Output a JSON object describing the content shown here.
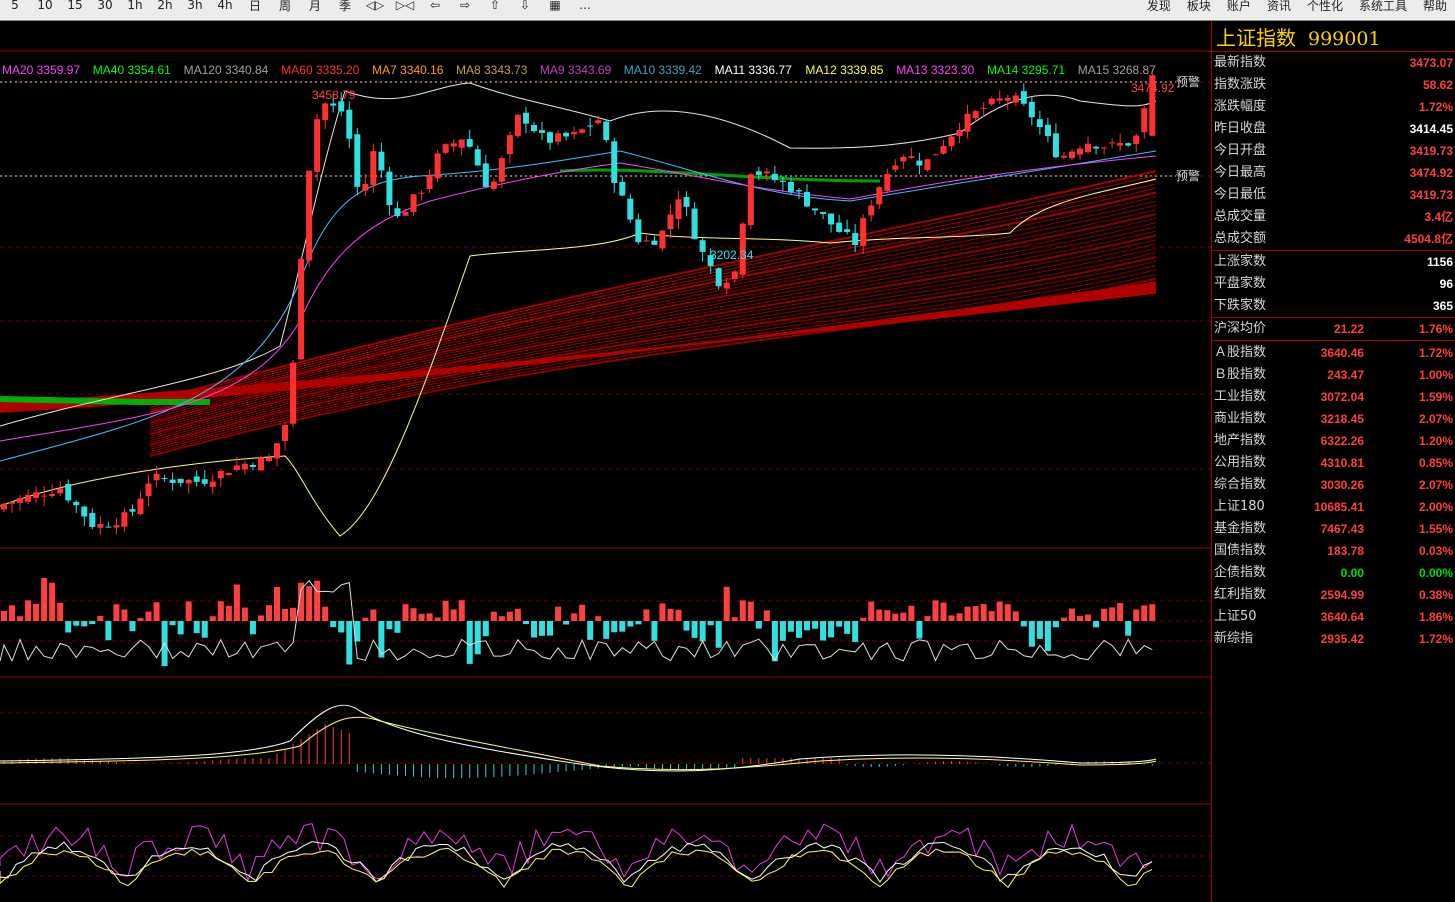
{
  "toolbar": {
    "left_items": [
      "5",
      "10",
      "15",
      "30",
      "1h",
      "2h",
      "3h",
      "4h",
      "日",
      "周",
      "月",
      "季",
      "◁▷",
      "▷◁",
      "⇦",
      "⇨",
      "⇧",
      "⇩",
      "▦",
      "..."
    ],
    "right_items": [
      "发现",
      "板块",
      "账户",
      "资讯",
      "个性化",
      "系统工具",
      "帮助"
    ]
  },
  "ma_legend": [
    {
      "label": "MA20 3359.97",
      "color": "#ff40ff"
    },
    {
      "label": "MA40 3354.61",
      "color": "#00ff00"
    },
    {
      "label": "MA120 3340.84",
      "color": "#a0a0a0"
    },
    {
      "label": "MA60 3335.20",
      "color": "#ff3030"
    },
    {
      "label": "MA7 3340.16",
      "color": "#ffa000"
    },
    {
      "label": "MA8 3343.73",
      "color": "#c0a040"
    },
    {
      "label": "MA9 3343.69",
      "color": "#c040c0"
    },
    {
      "label": "MA10 3339.42",
      "color": "#40a0c0"
    },
    {
      "label": "MA11 3336.77",
      "color": "#ffffff"
    },
    {
      "label": "MA12 3339.85",
      "color": "#ffff40"
    },
    {
      "label": "MA13 3323.30",
      "color": "#ff40ff"
    },
    {
      "label": "MA14 3295.71",
      "color": "#00ff00"
    },
    {
      "label": "MA15 3268.87",
      "color": "#a0a0a0"
    }
  ],
  "annotations": {
    "high_label": "3458.79",
    "low_label": "3202.34",
    "last_label": "3474.92",
    "alert_label": "预警"
  },
  "colors": {
    "up": "#ff4040",
    "down": "#40e0e0",
    "grid": "#8b0000"
  },
  "chart_data": {
    "type": "candlestick",
    "y_range": [
      3060,
      3490
    ],
    "candles": [],
    "volume": [],
    "macd": []
  },
  "sidebar": {
    "title": "上证指数",
    "code": "999001",
    "quote_rows": [
      {
        "label": "最新指数",
        "value": "3473.07",
        "color": "red"
      },
      {
        "label": "指数涨跌",
        "value": "58.62",
        "color": "red"
      },
      {
        "label": "涨跌幅度",
        "value": "1.72%",
        "color": "red"
      },
      {
        "label": "昨日收盘",
        "value": "3414.45",
        "color": "white"
      },
      {
        "label": "今日开盘",
        "value": "3419.73",
        "color": "red"
      },
      {
        "label": "今日最高",
        "value": "3474.92",
        "color": "red"
      },
      {
        "label": "今日最低",
        "value": "3419.73",
        "color": "red"
      },
      {
        "label": "总成交量",
        "value": "3.4亿",
        "color": "red"
      },
      {
        "label": "总成交额",
        "value": "4504.8亿",
        "color": "red"
      }
    ],
    "breadth_rows": [
      {
        "label": "上涨家数",
        "value": "1156",
        "color": "white"
      },
      {
        "label": "平盘家数",
        "value": "96",
        "color": "white"
      },
      {
        "label": "下跌家数",
        "value": "365",
        "color": "white"
      }
    ],
    "avg_row": {
      "label": "沪深均价",
      "value1": "21.22",
      "value2": "1.76%"
    },
    "index_rows": [
      {
        "label": "Ａ股指数",
        "value1": "3640.46",
        "value2": "1.72%",
        "color": "red"
      },
      {
        "label": "Ｂ股指数",
        "value1": "243.47",
        "value2": "1.00%",
        "color": "red"
      },
      {
        "label": "工业指数",
        "value1": "3072.04",
        "value2": "1.59%",
        "color": "red"
      },
      {
        "label": "商业指数",
        "value1": "3218.45",
        "value2": "2.07%",
        "color": "red"
      },
      {
        "label": "地产指数",
        "value1": "6322.26",
        "value2": "1.20%",
        "color": "red"
      },
      {
        "label": "公用指数",
        "value1": "4310.81",
        "value2": "0.85%",
        "color": "red"
      },
      {
        "label": "综合指数",
        "value1": "3030.26",
        "value2": "2.07%",
        "color": "red"
      },
      {
        "label": "上证180",
        "value1": "10685.41",
        "value2": "2.00%",
        "color": "red"
      },
      {
        "label": "基金指数",
        "value1": "7467.43",
        "value2": "1.55%",
        "color": "red"
      },
      {
        "label": "国债指数",
        "value1": "183.78",
        "value2": "0.03%",
        "color": "red"
      },
      {
        "label": "企债指数",
        "value1": "0.00",
        "value2": "0.00%",
        "color": "green"
      },
      {
        "label": "红利指数",
        "value1": "2594.99",
        "value2": "0.38%",
        "color": "red"
      },
      {
        "label": "上证50",
        "value1": "3640.64",
        "value2": "1.86%",
        "color": "red"
      },
      {
        "label": "新综指",
        "value1": "2935.42",
        "value2": "1.72%",
        "color": "red"
      }
    ]
  }
}
